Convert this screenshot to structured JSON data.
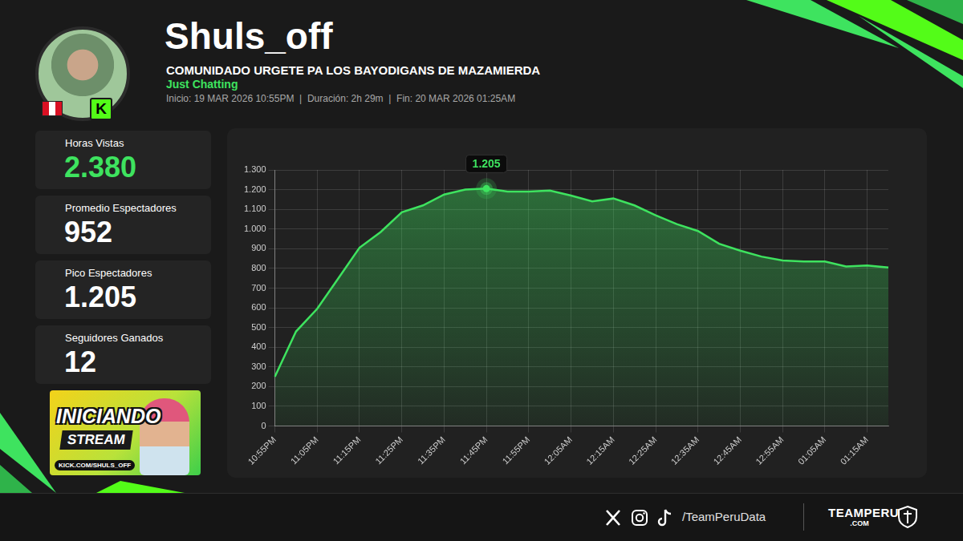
{
  "header": {
    "name": "Shuls_off",
    "title": "COMUNIDADO URGETE PA LOS BAYODIGANS DE MAZAMIERDA",
    "category": "Just Chatting",
    "info": "Inicio: 19 MAR 2026 10:55PM  |  Duración: 2h 29m  |  Fin: 20 MAR 2026 01:25AM",
    "platform_badge": "K"
  },
  "stats": [
    {
      "label": "Horas Vistas",
      "value": "2.380",
      "color": "#3ee35f"
    },
    {
      "label": "Promedio Espectadores",
      "value": "952",
      "color": "#ffffff"
    },
    {
      "label": "Pico Espectadores",
      "value": "1.205",
      "color": "#ffffff"
    },
    {
      "label": "Seguidores Ganados",
      "value": "12",
      "color": "#ffffff"
    }
  ],
  "thumbnail": {
    "lines": [
      "INICIANDO",
      "STREAM"
    ],
    "url": "KICK.COM/SHULS_OFF"
  },
  "chart_data": {
    "type": "area",
    "categories": [
      "10:55PM",
      null,
      "11:05PM",
      null,
      "11:15PM",
      null,
      "11:25PM",
      null,
      "11:35PM",
      null,
      "11:45PM",
      null,
      "11:55PM",
      null,
      "12:05AM",
      null,
      "12:15AM",
      null,
      "12:25AM",
      null,
      "12:35AM",
      null,
      "12:45AM",
      null,
      "12:55AM",
      null,
      "01:05AM",
      null,
      "01:15AM",
      null
    ],
    "values": [
      250,
      480,
      595,
      750,
      905,
      985,
      1085,
      1120,
      1175,
      1200,
      1205,
      1190,
      1190,
      1195,
      1170,
      1140,
      1155,
      1120,
      1070,
      1025,
      990,
      925,
      890,
      860,
      840,
      835,
      835,
      810,
      815,
      805
    ],
    "color": "#3ee35f",
    "ylim": [
      0,
      1300
    ],
    "yticks": [
      0,
      100,
      200,
      300,
      400,
      500,
      600,
      700,
      800,
      900,
      {
        "value": 1000,
        "label": "1.000"
      },
      {
        "value": 1100,
        "label": "1.100"
      },
      {
        "value": 1200,
        "label": "1.200"
      },
      {
        "value": 1300,
        "label": "1.300"
      }
    ],
    "grid": true,
    "annotations": [
      {
        "x": "11:45PM",
        "label": "1.205"
      }
    ]
  },
  "footer": {
    "handle": "/TeamPeruData",
    "brand": "TEAMPERU",
    "brand_sub": ".COM"
  }
}
